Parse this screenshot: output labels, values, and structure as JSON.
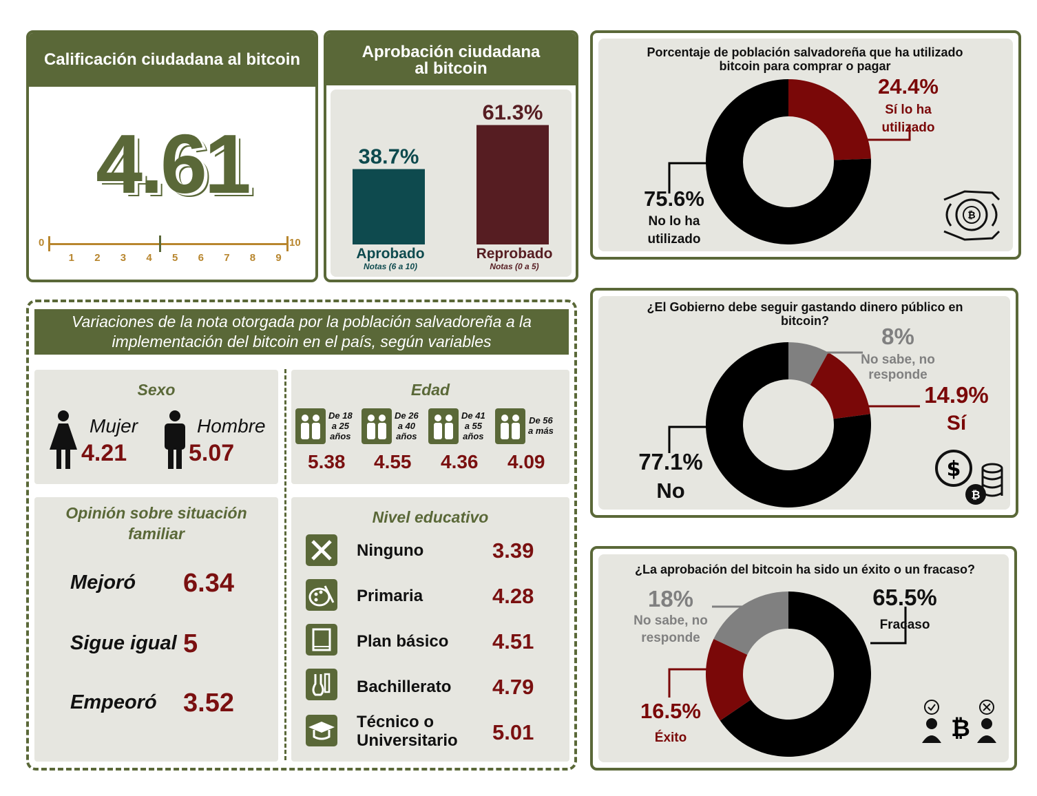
{
  "rating": {
    "title": "Calificación ciudadana al bitcoin",
    "value": "4.61",
    "scale_ticks": [
      "0",
      "1",
      "2",
      "3",
      "4",
      "5",
      "6",
      "7",
      "8",
      "9",
      "10"
    ]
  },
  "approval": {
    "title": "Aprobación ciudadana al bitcoin",
    "approved_label": "Aprobado",
    "approved_note": "Notas (6 a 10)",
    "approved_value_label": "38.7%",
    "failed_label": "Reprobado",
    "failed_note": "Notas (0 a 5)",
    "failed_value_label": "61.3%"
  },
  "usage": {
    "title": "Porcentaje de población salvadoreña que ha utilizado bitcoin para comprar o pagar",
    "yes_value": "24.4%",
    "yes_label_1": "Sí lo ha",
    "yes_label_2": "utilizado",
    "no_value": "75.6%",
    "no_label_1": "No lo ha",
    "no_label_2": "utilizado"
  },
  "spending": {
    "title": "¿El Gobierno debe seguir gastando dinero público en bitcoin?",
    "ns_value": "8%",
    "ns_label_1": "No sabe, no",
    "ns_label_2": "responde",
    "yes_value": "14.9%",
    "yes_label": "Sí",
    "no_value": "77.1%",
    "no_label": "No"
  },
  "success": {
    "title": "¿La aprobación del bitcoin ha sido un éxito o un fracaso?",
    "ns_value": "18%",
    "ns_label_1": "No sabe, no",
    "ns_label_2": "responde",
    "fail_value": "65.5%",
    "fail_label": "Fracaso",
    "succ_value": "16.5%",
    "succ_label": "Éxito"
  },
  "variations": {
    "title_1": "Variaciones de la nota otorgada por la población salvadoreña a la",
    "title_2": "implementación del bitcoin en el país, según variables",
    "sex": {
      "title": "Sexo",
      "female_label": "Mujer",
      "female_value": "4.21",
      "male_label": "Hombre",
      "male_value": "5.07"
    },
    "age": {
      "title": "Edad",
      "groups": [
        {
          "l1": "De 18",
          "l2": "a 25",
          "l3": "años",
          "value": "5.38"
        },
        {
          "l1": "De 26",
          "l2": "a 40",
          "l3": "años",
          "value": "4.55"
        },
        {
          "l1": "De 41",
          "l2": "a 55",
          "l3": "años",
          "value": "4.36"
        },
        {
          "l1": "De 56",
          "l2": "a más",
          "l3": "",
          "value": "4.09"
        }
      ]
    },
    "family": {
      "title_1": "Opinión sobre situación",
      "title_2": "familiar",
      "rows": [
        {
          "label": "Mejoró",
          "value": "6.34"
        },
        {
          "label": "Sigue igual",
          "value": "5"
        },
        {
          "label": "Empeoró",
          "value": "3.52"
        }
      ]
    },
    "education": {
      "title": "Nivel educativo",
      "rows": [
        {
          "label": "Ninguno",
          "label2": "",
          "value": "3.39"
        },
        {
          "label": "Primaria",
          "label2": "",
          "value": "4.28"
        },
        {
          "label": "Plan básico",
          "label2": "",
          "value": "4.51"
        },
        {
          "label": "Bachillerato",
          "label2": "",
          "value": "4.79"
        },
        {
          "label": "Técnico o",
          "label2": "Universitario",
          "value": "5.01"
        }
      ]
    }
  },
  "chart_data": [
    {
      "type": "bar",
      "title": "Aprobación ciudadana al bitcoin",
      "categories": [
        "Aprobado",
        "Reprobado"
      ],
      "values": [
        38.7,
        61.3
      ],
      "ylim": [
        0,
        70
      ]
    },
    {
      "type": "pie",
      "title": "Porcentaje de población salvadoreña que ha utilizado bitcoin para comprar o pagar",
      "categories": [
        "Sí lo ha utilizado",
        "No lo ha utilizado"
      ],
      "values": [
        24.4,
        75.6
      ]
    },
    {
      "type": "pie",
      "title": "¿El Gobierno debe seguir gastando dinero público en bitcoin?",
      "categories": [
        "No sabe, no responde",
        "Sí",
        "No"
      ],
      "values": [
        8,
        14.9,
        77.1
      ]
    },
    {
      "type": "pie",
      "title": "¿La aprobación del bitcoin ha sido un éxito o un fracaso?",
      "categories": [
        "Fracaso",
        "Éxito",
        "No sabe, no responde"
      ],
      "values": [
        65.5,
        16.5,
        18
      ]
    }
  ],
  "colors": {
    "olive": "#5a6838",
    "teal": "#0e4a4e",
    "maroon": "#561d22",
    "red": "#7a0808",
    "black": "#000000",
    "gray": "#808080",
    "panel": "#e6e6e0",
    "tick": "#b8862e"
  }
}
